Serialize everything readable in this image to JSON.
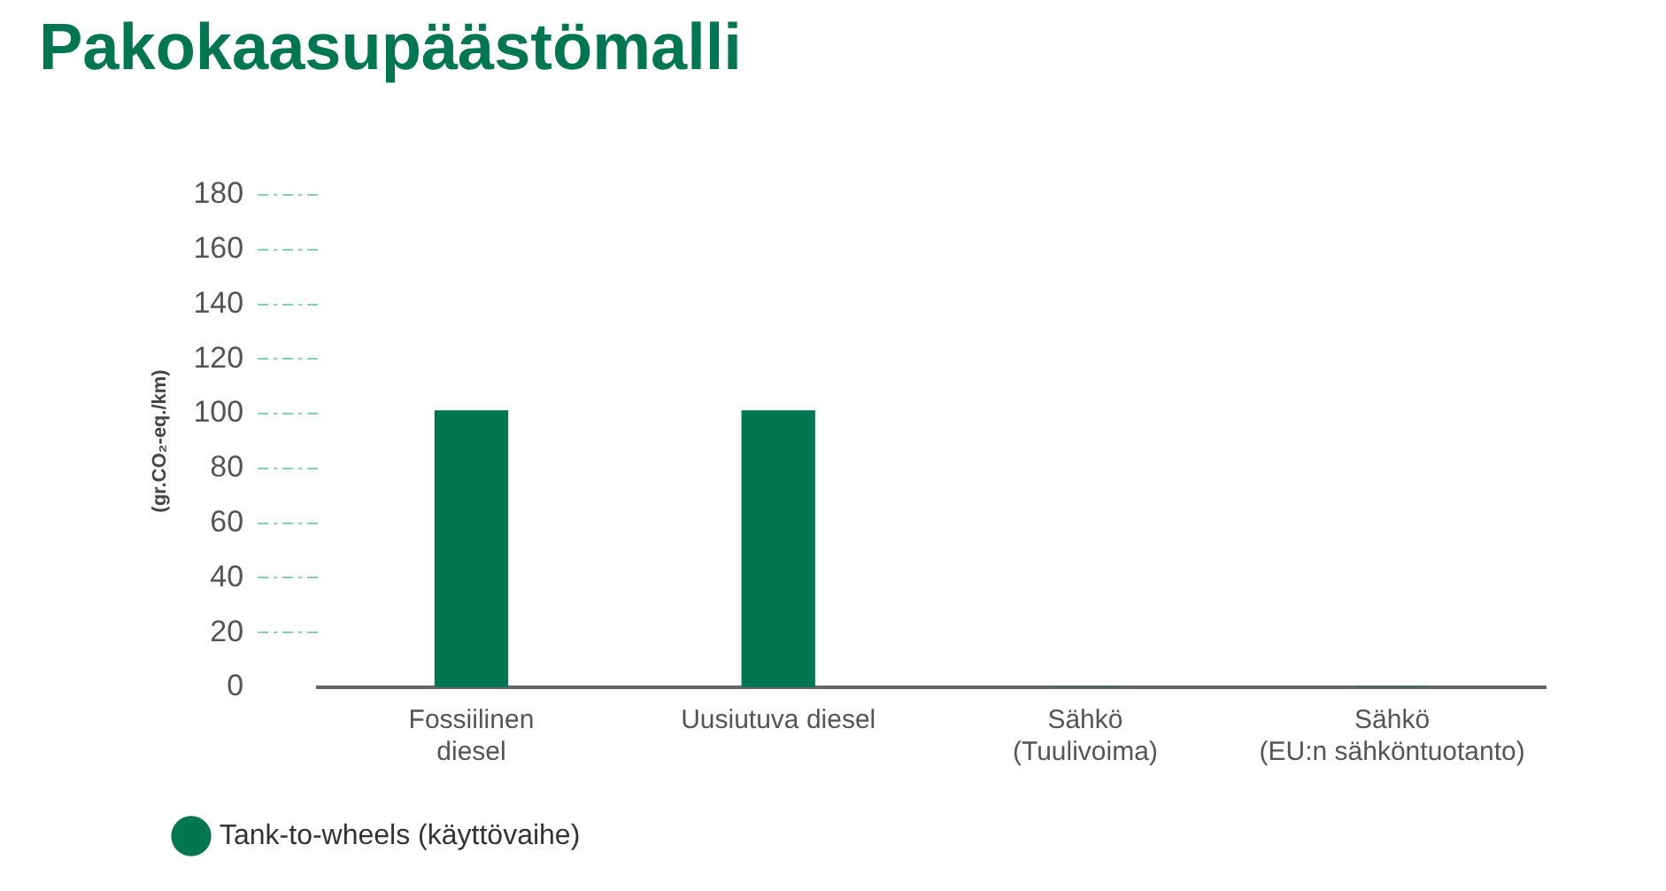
{
  "chart_data": {
    "type": "bar",
    "title": "Pakokaasupäästömalli",
    "ylabel": "(gr.CO₂-eq./km)",
    "categories": [
      "Fossiilinen\ndiesel",
      "Uusiutuva diesel",
      "Sähkö\n(Tuulivoima)",
      "Sähkö\n(EU:n sähköntuotanto)"
    ],
    "series": [
      {
        "name": "Tank-to-wheels (käyttövaihe)",
        "color": "#007750",
        "values": [
          101,
          101,
          0,
          0
        ]
      }
    ],
    "ylim": [
      0,
      180
    ],
    "yticks": [
      0,
      20,
      40,
      60,
      80,
      100,
      120,
      140,
      160,
      180
    ],
    "grid": false,
    "legend": "bottom left"
  }
}
